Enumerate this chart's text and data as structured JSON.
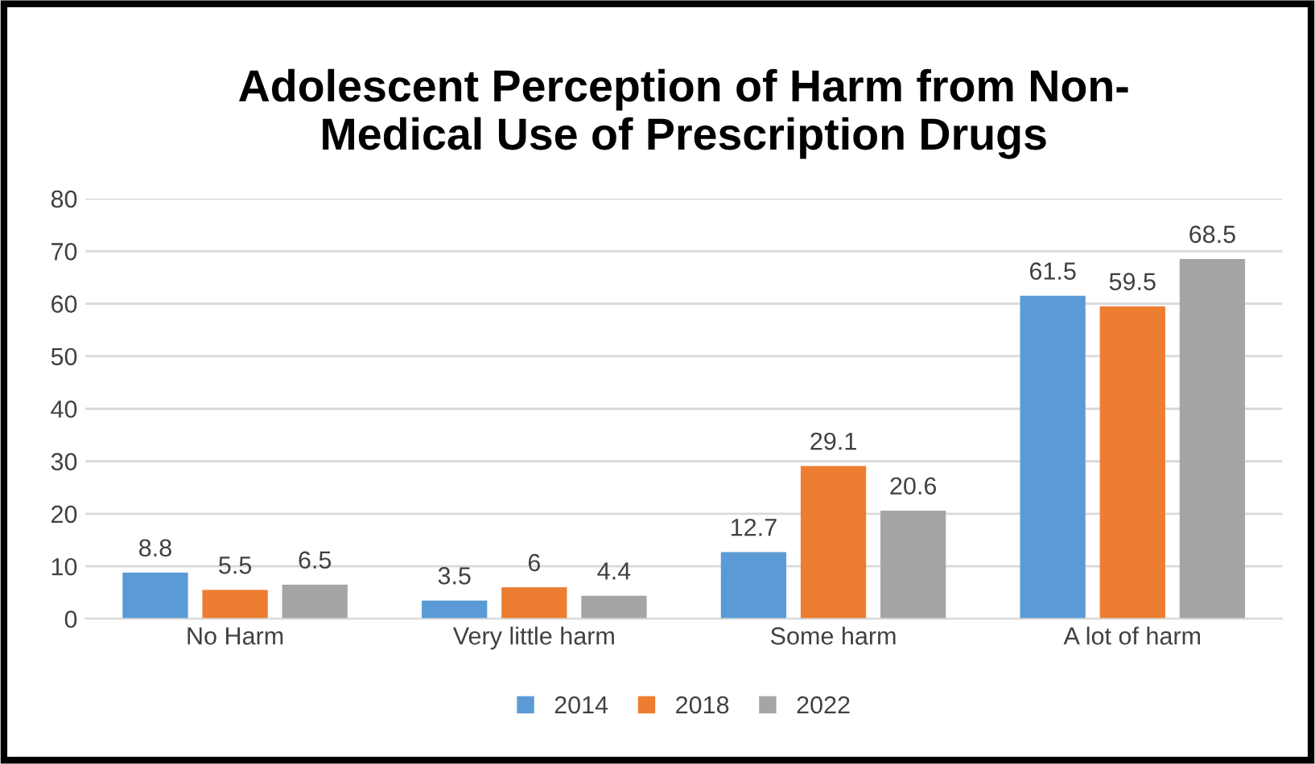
{
  "chart_data": {
    "type": "bar",
    "title": "Adolescent Perception of Harm from Non-\nMedical Use of Prescription Drugs",
    "categories": [
      "No Harm",
      "Very little harm",
      "Some harm",
      "A lot of harm"
    ],
    "series": [
      {
        "name": "2014",
        "color": "#5b9bd5",
        "values": [
          8.8,
          3.5,
          12.7,
          61.5
        ]
      },
      {
        "name": "2018",
        "color": "#ed7d31",
        "values": [
          5.5,
          6,
          29.1,
          59.5
        ]
      },
      {
        "name": "2022",
        "color": "#a5a5a5",
        "values": [
          6.5,
          4.4,
          20.6,
          68.5
        ]
      }
    ],
    "ylim": [
      0,
      80
    ],
    "yticks": [
      0,
      10,
      20,
      30,
      40,
      50,
      60,
      70,
      80
    ],
    "grid": "y",
    "legend": "bottom",
    "data_labels": true
  }
}
